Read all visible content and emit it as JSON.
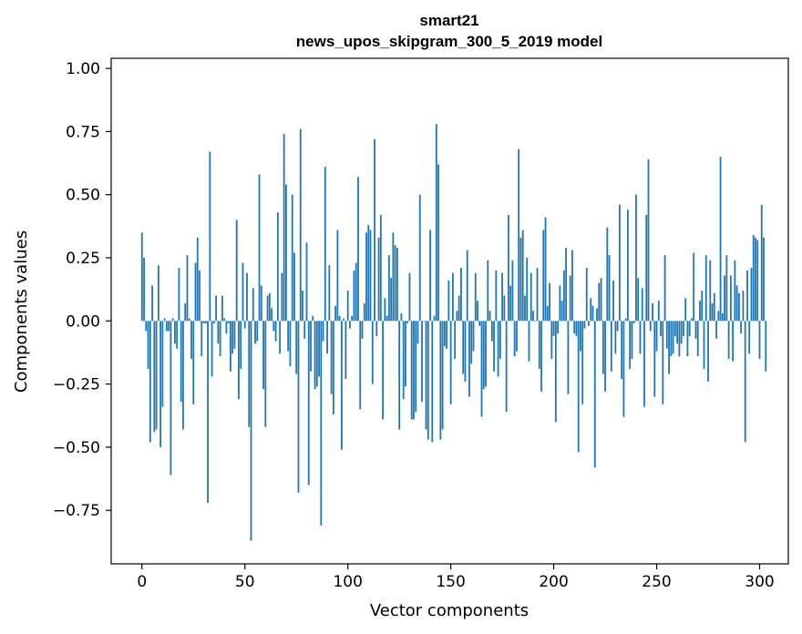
{
  "chart_data": {
    "type": "bar",
    "title": "smart21",
    "subtitle": "news_upos_skipgram_300_5_2019 model",
    "xlabel": "Vector components",
    "ylabel": "Components values",
    "xlim": [
      -14.95,
      313.95
    ],
    "ylim": [
      -0.962,
      1.04
    ],
    "x_ticks": [
      {
        "value": 0,
        "label": "0"
      },
      {
        "value": 50,
        "label": "50"
      },
      {
        "value": 100,
        "label": "100"
      },
      {
        "value": 150,
        "label": "150"
      },
      {
        "value": 200,
        "label": "200"
      },
      {
        "value": 250,
        "label": "250"
      },
      {
        "value": 300,
        "label": "300"
      }
    ],
    "y_ticks": [
      {
        "value": 1.0,
        "label": "1.00"
      },
      {
        "value": 0.75,
        "label": "0.75"
      },
      {
        "value": 0.5,
        "label": "0.50"
      },
      {
        "value": 0.25,
        "label": "0.25"
      },
      {
        "value": 0.0,
        "label": "0.00"
      },
      {
        "value": -0.25,
        "label": "−0.25"
      },
      {
        "value": -0.5,
        "label": "−0.50"
      },
      {
        "value": -0.75,
        "label": "−0.75"
      }
    ],
    "grid": false,
    "bar_color": "#1f77b4",
    "values": [
      0.35,
      0.25,
      -0.04,
      -0.19,
      -0.48,
      0.14,
      -0.44,
      -0.43,
      0.22,
      -0.5,
      -0.34,
      0.01,
      -0.04,
      -0.04,
      -0.61,
      0.01,
      -0.09,
      -0.11,
      0.21,
      -0.32,
      -0.43,
      0.07,
      0.26,
      0.01,
      -0.15,
      -0.33,
      0.23,
      0.33,
      0.2,
      -0.14,
      -0.01,
      -0.01,
      -0.72,
      0.67,
      -0.22,
      -0.01,
      0.1,
      -0.09,
      -0.14,
      0.1,
      0.01,
      -0.05,
      -0.01,
      -0.2,
      -0.13,
      -0.11,
      0.4,
      -0.31,
      -0.19,
      0.23,
      -0.03,
      0.19,
      -0.42,
      -0.87,
      0.13,
      -0.09,
      -0.08,
      0.58,
      0.14,
      -0.27,
      -0.42,
      0.1,
      0.11,
      0.05,
      -0.04,
      -0.08,
      0.43,
      -0.13,
      0.19,
      0.74,
      0.54,
      -0.12,
      -0.18,
      0.5,
      0.27,
      -0.21,
      -0.68,
      0.76,
      0.12,
      -0.07,
      0.31,
      -0.65,
      -0.2,
      0.02,
      -0.27,
      -0.26,
      -0.22,
      -0.81,
      -0.08,
      0.61,
      -0.13,
      0.22,
      -0.29,
      -0.37,
      0.06,
      0.36,
      0.02,
      -0.51,
      0.01,
      -0.23,
      0.12,
      -0.03,
      0.02,
      0.2,
      0.23,
      0.57,
      -0.35,
      -0.07,
      0.07,
      0.35,
      0.38,
      0.36,
      -0.25,
      0.72,
      -0.06,
      0.33,
      0.42,
      -0.39,
      0.09,
      0.02,
      0.26,
      0.17,
      0.35,
      0.3,
      0.29,
      -0.43,
      0.03,
      -0.31,
      -0.26,
      -0.01,
      0.19,
      -0.39,
      -0.39,
      -0.36,
      -0.09,
      0.5,
      -0.32,
      0.0,
      -0.43,
      -0.47,
      0.36,
      -0.48,
      0.02,
      0.78,
      0.62,
      -0.47,
      -0.43,
      -0.1,
      -0.11,
      0.16,
      -0.33,
      0.19,
      -0.15,
      0.04,
      0.1,
      0.21,
      -0.21,
      -0.24,
      0.28,
      -0.3,
      -0.17,
      -0.12,
      0.19,
      0.08,
      -0.02,
      -0.38,
      -0.27,
      -0.26,
      0.24,
      0.04,
      -0.08,
      -0.2,
      0.2,
      -0.22,
      -0.15,
      0.19,
      0.1,
      -0.36,
      0.42,
      0.14,
      0.24,
      -0.14,
      -0.12,
      0.68,
      0.33,
      0.36,
      0.1,
      0.25,
      -0.16,
      0.19,
      0.04,
      0.0,
      0.21,
      -0.19,
      -0.28,
      0.36,
      0.41,
      0.06,
      0.15,
      -0.15,
      -0.06,
      -0.4,
      -0.05,
      0.14,
      0.08,
      0.2,
      0.29,
      -0.29,
      0.18,
      0.28,
      -0.05,
      -0.06,
      -0.52,
      -0.12,
      -0.33,
      -0.03,
      0.21,
      -0.02,
      0.09,
      0.06,
      -0.58,
      0.05,
      0.15,
      0.17,
      -0.21,
      -0.28,
      0.37,
      0.26,
      -0.2,
      0.16,
      -0.13,
      -0.04,
      0.46,
      -0.23,
      -0.38,
      0.01,
      0.44,
      -0.19,
      -0.15,
      -0.01,
      0.5,
      0.17,
      -0.13,
      0.13,
      -0.34,
      0.42,
      0.64,
      -0.04,
      0.07,
      -0.3,
      -0.12,
      0.08,
      -0.06,
      -0.33,
      0.26,
      -0.11,
      -0.21,
      -0.14,
      -0.13,
      -0.06,
      -0.09,
      -0.14,
      -0.09,
      -0.06,
      0.09,
      -0.14,
      -0.06,
      0.01,
      0.27,
      -0.07,
      -0.14,
      0.08,
      0.12,
      -0.19,
      0.26,
      -0.24,
      0.24,
      0.07,
      0.11,
      -0.07,
      0.04,
      0.65,
      0.03,
      0.18,
      0.26,
      -0.15,
      0.18,
      -0.16,
      0.24,
      0.14,
      0.11,
      -0.05,
      0.12,
      -0.48,
      0.2,
      -0.13,
      0.21,
      0.34,
      0.33,
      0.32,
      -0.15,
      0.46,
      0.33,
      -0.2
    ]
  }
}
